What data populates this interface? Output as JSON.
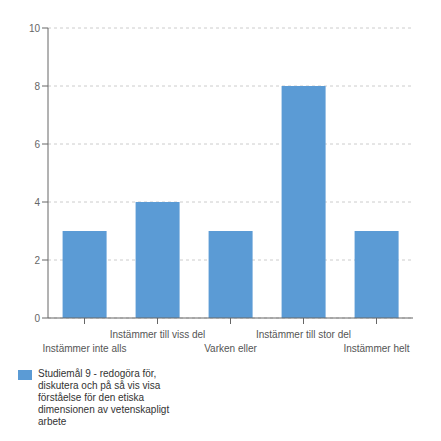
{
  "chart_data": {
    "type": "bar",
    "categories": [
      "Instämmer inte alls",
      "Instämmer till viss del",
      "Varken eller",
      "Instämmer till stor del",
      "Instämmer helt"
    ],
    "series": [
      {
        "name": "Studiemål 9 - redogöra för,\ndiskutera och på så vis visa\nförståelse för den etiska\ndimensionen av vetenskapligt\narbete",
        "color": "#5B9BD5",
        "values": [
          3,
          4,
          3,
          8,
          3
        ]
      }
    ],
    "ylim": [
      0,
      10
    ],
    "yticks": [
      0,
      2,
      4,
      6,
      8,
      10
    ],
    "grid": true,
    "legend": "lower left"
  }
}
